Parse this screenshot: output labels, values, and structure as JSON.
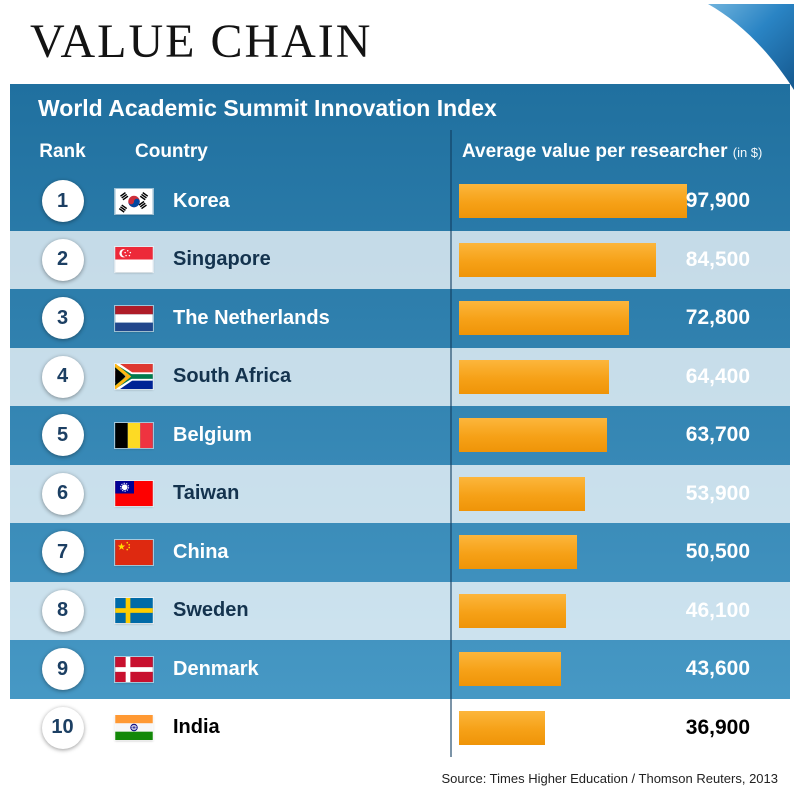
{
  "title": "VALUE CHAIN",
  "panel": {
    "header": "World Academic Summit Innovation Index",
    "columns": {
      "rank": "Rank",
      "country": "Country",
      "value": "Average value per researcher",
      "value_unit": "(in $)"
    }
  },
  "chart_data": {
    "type": "bar",
    "title": "World Academic Summit Innovation Index",
    "categories": [
      "Korea",
      "Singapore",
      "The Netherlands",
      "South Africa",
      "Belgium",
      "Taiwan",
      "China",
      "Sweden",
      "Denmark",
      "India"
    ],
    "values": [
      97900,
      84500,
      72800,
      64400,
      63700,
      53900,
      50500,
      46100,
      43600,
      36900
    ],
    "xlabel": "Average value per researcher (in $)",
    "ylabel": "",
    "xlim": [
      0,
      100000
    ],
    "legend": "none",
    "grid": false,
    "bar_color": "#f6a117"
  },
  "rows": [
    {
      "rank": "1",
      "country": "Korea",
      "flag_icon": "korea-flag-icon",
      "value": 97900,
      "value_label": "97,900",
      "highlight": false
    },
    {
      "rank": "2",
      "country": "Singapore",
      "flag_icon": "singapore-flag-icon",
      "value": 84500,
      "value_label": "84,500",
      "highlight": false
    },
    {
      "rank": "3",
      "country": "The Netherlands",
      "flag_icon": "netherlands-flag-icon",
      "value": 72800,
      "value_label": "72,800",
      "highlight": false
    },
    {
      "rank": "4",
      "country": "South Africa",
      "flag_icon": "south-africa-flag-icon",
      "value": 64400,
      "value_label": "64,400",
      "highlight": false
    },
    {
      "rank": "5",
      "country": "Belgium",
      "flag_icon": "belgium-flag-icon",
      "value": 63700,
      "value_label": "63,700",
      "highlight": false
    },
    {
      "rank": "6",
      "country": "Taiwan",
      "flag_icon": "taiwan-flag-icon",
      "value": 53900,
      "value_label": "53,900",
      "highlight": false
    },
    {
      "rank": "7",
      "country": "China",
      "flag_icon": "china-flag-icon",
      "value": 50500,
      "value_label": "50,500",
      "highlight": false
    },
    {
      "rank": "8",
      "country": "Sweden",
      "flag_icon": "sweden-flag-icon",
      "value": 46100,
      "value_label": "46,100",
      "highlight": false
    },
    {
      "rank": "9",
      "country": "Denmark",
      "flag_icon": "denmark-flag-icon",
      "value": 43600,
      "value_label": "43,600",
      "highlight": false
    },
    {
      "rank": "10",
      "country": "India",
      "flag_icon": "india-flag-icon",
      "value": 36900,
      "value_label": "36,900",
      "highlight": true
    }
  ],
  "footer": {
    "source": "Source: Times Higher Education / Thomson Reuters, 2013"
  },
  "colors": {
    "panel_blue_top": "#20709f",
    "panel_blue_bottom": "#4a9cc8",
    "light_row": "#c2d9e7",
    "bar_orange": "#f6a117",
    "fold_blue": "#1d78be"
  }
}
